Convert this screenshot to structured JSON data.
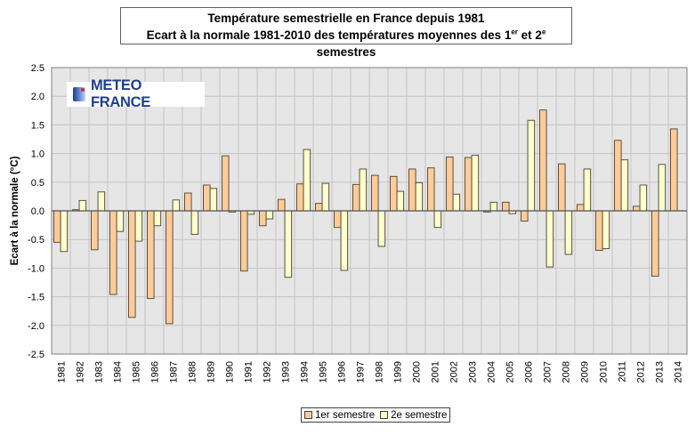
{
  "chart_data": {
    "type": "bar",
    "title": "Température semestrielle en France depuis 1981",
    "subtitle_parts": {
      "pre": "Ecart à la normale 1981-2010 des températures moyennes des 1",
      "sup1": "er",
      "mid": " et 2",
      "sup2": "e",
      "post": " semestres"
    },
    "xlabel": "",
    "ylabel": "Ecart à la normale (°C)",
    "ylim": [
      -2.5,
      2.5
    ],
    "yticks": [
      2.5,
      2.0,
      1.5,
      1.0,
      0.5,
      0.0,
      -0.5,
      -1.0,
      -1.5,
      -2.0,
      -2.5
    ],
    "ytick_labels": [
      "2.5",
      "2.0",
      "1.5",
      "1.0",
      "0.5",
      "0.0",
      "-0.5",
      "-1.0",
      "-1.5",
      "-2.0",
      "-2.5"
    ],
    "grid": true,
    "legend_position": "bottom-center",
    "categories": [
      "1981",
      "1982",
      "1983",
      "1984",
      "1985",
      "1986",
      "1987",
      "1988",
      "1989",
      "1990",
      "1991",
      "1992",
      "1993",
      "1994",
      "1995",
      "1996",
      "1997",
      "1998",
      "1999",
      "2000",
      "2001",
      "2002",
      "2003",
      "2004",
      "2005",
      "2006",
      "2007",
      "2008",
      "2009",
      "2010",
      "2011",
      "2012",
      "2013",
      "2014"
    ],
    "series": [
      {
        "name": "1er semestre",
        "color": "#FFCC99",
        "values": [
          -0.55,
          0.02,
          -0.68,
          -1.46,
          -1.86,
          -1.53,
          -1.97,
          0.31,
          0.45,
          0.96,
          -1.05,
          -0.26,
          0.2,
          0.47,
          0.13,
          -0.29,
          0.46,
          0.62,
          0.6,
          0.73,
          0.75,
          0.94,
          0.93,
          -0.02,
          0.15,
          -0.18,
          1.76,
          0.82,
          0.11,
          -0.69,
          1.23,
          0.08,
          -1.14,
          1.43
        ]
      },
      {
        "name": "2e semestre",
        "color": "#FFFFCC",
        "values": [
          -0.71,
          0.18,
          0.33,
          -0.36,
          -0.53,
          -0.26,
          0.19,
          -0.41,
          0.39,
          -0.02,
          -0.06,
          -0.14,
          -1.16,
          1.07,
          0.48,
          -1.04,
          0.73,
          -0.62,
          0.34,
          0.49,
          -0.29,
          0.29,
          0.97,
          0.15,
          -0.05,
          1.58,
          -0.98,
          -0.76,
          0.73,
          -0.66,
          0.89,
          0.45,
          0.81,
          null
        ]
      }
    ]
  },
  "logo": {
    "text": "METEO FRANCE"
  },
  "legend": {
    "items": [
      "1er semestre",
      "2e semestre"
    ]
  }
}
